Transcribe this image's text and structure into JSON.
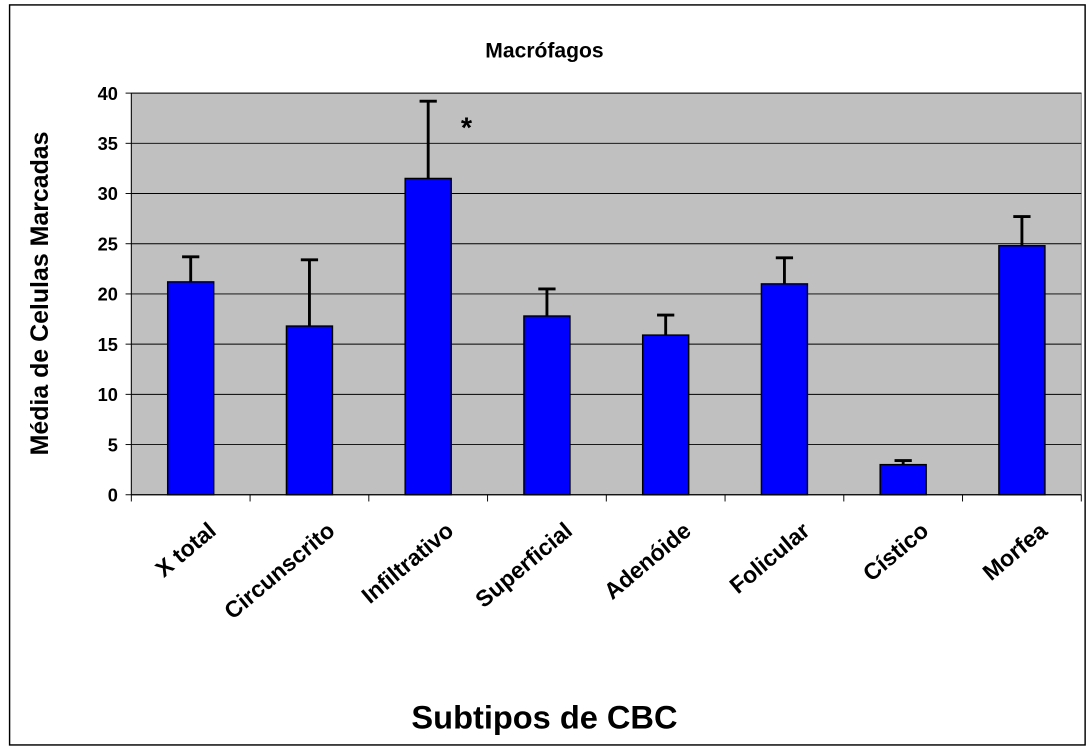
{
  "chart_data": {
    "type": "bar",
    "title": "Macrófagos",
    "x_label": "Subtipos de CBC",
    "y_label": "Média de Celulas Marcadas",
    "categories": [
      "X total",
      "Circunscrito",
      "Infiltrativo",
      "Superficial",
      "Adenóide",
      "Folicular",
      "Cístico",
      "Morfea"
    ],
    "values": [
      21.2,
      16.8,
      31.5,
      17.8,
      15.9,
      21.0,
      3.0,
      24.8
    ],
    "errors": [
      2.5,
      6.6,
      7.7,
      2.7,
      2.0,
      2.6,
      0.4,
      2.9
    ],
    "color": "#0000ff",
    "plot_background": "#c0c0c0",
    "ylim": [
      0,
      40
    ],
    "yticks": [
      0,
      5,
      10,
      15,
      20,
      25,
      30,
      35,
      40
    ],
    "grid": true,
    "annotations": [
      {
        "text": "*",
        "category": 2
      }
    ]
  }
}
